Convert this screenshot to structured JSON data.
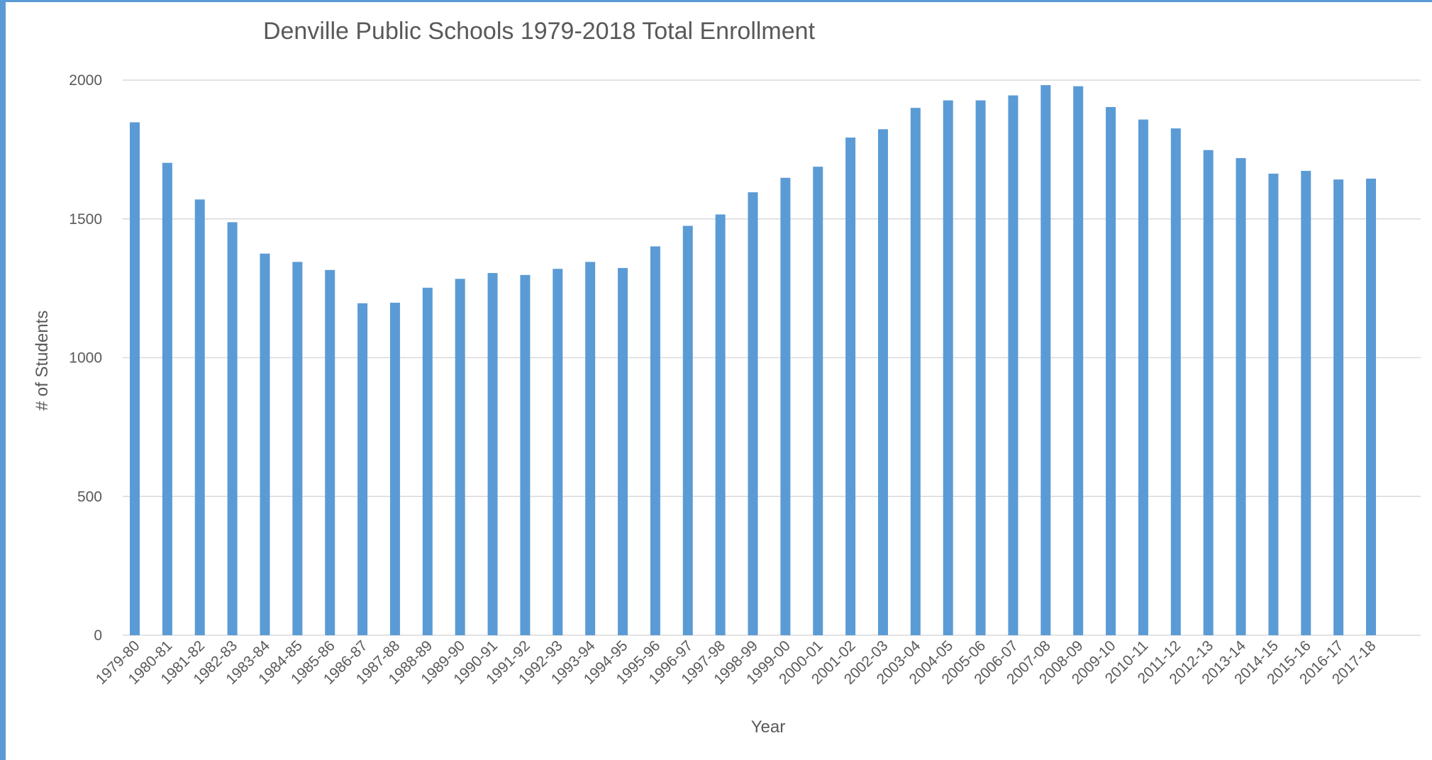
{
  "chart_data": {
    "type": "bar",
    "title": "Denville Public Schools 1979-2018 Total Enrollment",
    "xlabel": "Year",
    "ylabel": "# of Students",
    "ylim": [
      0,
      2000
    ],
    "yticks": [
      0,
      500,
      1000,
      1500,
      2000
    ],
    "grid": true,
    "legend": "none",
    "bar_color": "#5b9bd5",
    "categories": [
      "1979-80",
      "1980-81",
      "1981-82",
      "1982-83",
      "1983-84",
      "1984-85",
      "1985-86",
      "1986-87",
      "1987-88",
      "1988-89",
      "1989-90",
      "1990-91",
      "1991-92",
      "1992-93",
      "1993-94",
      "1994-95",
      "1995-96",
      "1996-97",
      "1997-98",
      "1998-99",
      "1999-00",
      "2000-01",
      "2001-02",
      "2002-03",
      "2003-04",
      "2004-05",
      "2005-06",
      "2006-07",
      "2007-08",
      "2008-09",
      "2009-10",
      "2010-11",
      "2011-12",
      "2012-13",
      "2013-14",
      "2014-15",
      "2015-16",
      "2016-17",
      "2017-18"
    ],
    "values": [
      1848,
      1702,
      1570,
      1488,
      1375,
      1345,
      1316,
      1196,
      1198,
      1252,
      1284,
      1305,
      1298,
      1320,
      1345,
      1323,
      1401,
      1475,
      1516,
      1596,
      1648,
      1688,
      1793,
      1823,
      1900,
      1927,
      1927,
      1945,
      1982,
      1978,
      1903,
      1858,
      1826,
      1748,
      1719,
      1663,
      1673,
      1642,
      1645
    ]
  }
}
